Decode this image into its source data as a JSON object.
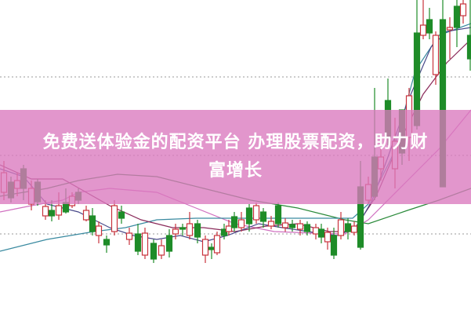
{
  "banner": {
    "line1": "免费送体验金的配资平台 办理股票配资，助力财",
    "line2": "富增长"
  },
  "colors": {
    "rise": "#c8323c",
    "fall": "#1e8c28",
    "banner": "#da78be",
    "grid": "#999999"
  }
}
